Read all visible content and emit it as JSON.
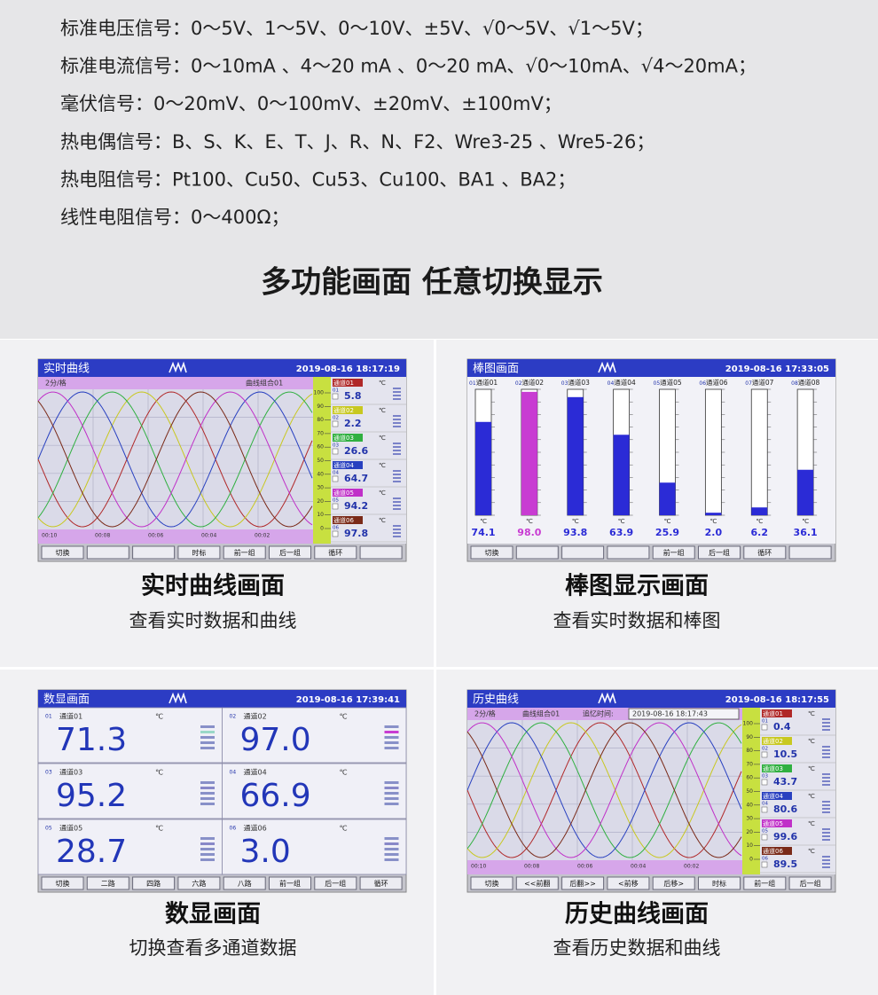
{
  "signals": [
    {
      "label": "标准电压信号：",
      "text": "0～5V、1～5V、0～10V、±5V、√0～5V、√1～5V；"
    },
    {
      "label": "标准电流信号：",
      "text": "0～10mA 、4～20 mA 、0～20 mA、√0～10mA、√4～20mA；"
    },
    {
      "label": "毫伏信号：",
      "text": "0～20mV、0～100mV、±20mV、±100mV；"
    },
    {
      "label": "热电偶信号：",
      "text": "B、S、K、E、T、J、R、N、F2、Wre3-25 、Wre5-26；"
    },
    {
      "label": "热电阻信号：",
      "text": "Pt100、Cu50、Cu53、Cu100、BA1 、BA2；"
    },
    {
      "label": "线性电阻信号：",
      "text": "0～400Ω；"
    }
  ],
  "heading": "多功能画面  任意切换显示",
  "panels": [
    {
      "title": "实时曲线画面",
      "subtitle": "查看实时数据和曲线",
      "screen": {
        "kind": "curve",
        "title": "实时曲线",
        "datetime": "2019-08-16 18:17:19",
        "scale_label": "2分/格",
        "group": "曲线组合01",
        "times": [
          "00:10",
          "00:08",
          "00:06",
          "00:04",
          "00:02"
        ],
        "scale": [
          "100",
          "90",
          "80",
          "70",
          "60",
          "50",
          "40",
          "30",
          "20",
          "10",
          "0"
        ],
        "channels": [
          {
            "id": "01",
            "name": "通道01",
            "unit": "℃",
            "value": "5.8",
            "color": "#b02828"
          },
          {
            "id": "02",
            "name": "通道02",
            "unit": "℃",
            "value": "2.2",
            "color": "#c8c820"
          },
          {
            "id": "03",
            "name": "通道03",
            "unit": "℃",
            "value": "26.6",
            "color": "#30b040"
          },
          {
            "id": "04",
            "name": "通道04",
            "unit": "℃",
            "value": "64.7",
            "color": "#2840c0"
          },
          {
            "id": "05",
            "name": "通道05",
            "unit": "℃",
            "value": "94.2",
            "color": "#c030c8"
          },
          {
            "id": "06",
            "name": "通道06",
            "unit": "℃",
            "value": "97.8",
            "color": "#7a2a18"
          }
        ],
        "buttons": [
          "切换",
          null,
          null,
          "时标",
          "前一组",
          "后一组",
          "循环",
          null
        ]
      }
    },
    {
      "title": "棒图显示画面",
      "subtitle": "查看实时数据和棒图",
      "screen": {
        "kind": "bar",
        "title": "棒图画面",
        "datetime": "2019-08-16 17:33:05",
        "ylim": [
          0,
          100
        ],
        "channels": [
          {
            "id": "01",
            "name": "通道01",
            "unit": "℃",
            "value": 74.1,
            "value_label": "74.1",
            "color": "#2b2bd6"
          },
          {
            "id": "02",
            "name": "通道02",
            "unit": "℃",
            "value": 98,
            "value_label": "98.0",
            "color": "#c83cd2"
          },
          {
            "id": "03",
            "name": "通道03",
            "unit": "℃",
            "value": 93.8,
            "value_label": "93.8",
            "color": "#2b2bd6"
          },
          {
            "id": "04",
            "name": "通道04",
            "unit": "℃",
            "value": 63.9,
            "value_label": "63.9",
            "color": "#2b2bd6"
          },
          {
            "id": "05",
            "name": "通道05",
            "unit": "℃",
            "value": 25.9,
            "value_label": "25.9",
            "color": "#2b2bd6"
          },
          {
            "id": "06",
            "name": "通道06",
            "unit": "℃",
            "value": 2,
            "value_label": "2.0",
            "color": "#2b2bd6"
          },
          {
            "id": "07",
            "name": "通道07",
            "unit": "℃",
            "value": 6.2,
            "value_label": "6.2",
            "color": "#2b2bd6"
          },
          {
            "id": "08",
            "name": "通道08",
            "unit": "℃",
            "value": 36.1,
            "value_label": "36.1",
            "color": "#2b2bd6"
          }
        ],
        "buttons": [
          "切换",
          null,
          null,
          null,
          "前一组",
          "后一组",
          "循环",
          null
        ]
      }
    },
    {
      "title": "数显画面",
      "subtitle": "切换查看多通道数据",
      "screen": {
        "kind": "numeric",
        "title": "数显画面",
        "datetime": "2019-08-16 17:39:41",
        "channels": [
          {
            "id": "01",
            "name": "通道01",
            "unit": "℃",
            "value": "71.3",
            "color": "#9ad8c8"
          },
          {
            "id": "02",
            "name": "通道02",
            "unit": "℃",
            "value": "97.0",
            "color": "#c83cd2"
          },
          {
            "id": "03",
            "name": "通道03",
            "unit": "℃",
            "value": "95.2",
            "color": "#8888c8"
          },
          {
            "id": "04",
            "name": "通道04",
            "unit": "℃",
            "value": "66.9",
            "color": "#8888c8"
          },
          {
            "id": "05",
            "name": "通道05",
            "unit": "℃",
            "value": "28.7",
            "color": "#8888c8"
          },
          {
            "id": "06",
            "name": "通道06",
            "unit": "℃",
            "value": "3.0",
            "color": "#8888c8"
          }
        ],
        "buttons": [
          "切换",
          "二路",
          "四路",
          "六路",
          "八路",
          "前一组",
          "后一组",
          "循环"
        ]
      }
    },
    {
      "title": "历史曲线画面",
      "subtitle": "查看历史数据和曲线",
      "screen": {
        "kind": "curve",
        "title": "历史曲线",
        "datetime": "2019-08-16 18:17:55",
        "scale_label": "2分/格",
        "group": "曲线组合01",
        "recall_label": "追忆时间:",
        "recall_time": "2019-08-16 18:17:43",
        "times": [
          "00:10",
          "00:08",
          "00:06",
          "00:04",
          "00:02"
        ],
        "scale": [
          "100",
          "90",
          "80",
          "70",
          "60",
          "50",
          "40",
          "30",
          "20",
          "10",
          "0"
        ],
        "channels": [
          {
            "id": "01",
            "name": "通道01",
            "unit": "℃",
            "value": "0.4",
            "color": "#b02828"
          },
          {
            "id": "02",
            "name": "通道02",
            "unit": "℃",
            "value": "10.5",
            "color": "#c8c820"
          },
          {
            "id": "03",
            "name": "通道03",
            "unit": "℃",
            "value": "43.7",
            "color": "#30b040"
          },
          {
            "id": "04",
            "name": "通道04",
            "unit": "℃",
            "value": "80.6",
            "color": "#2840c0"
          },
          {
            "id": "05",
            "name": "通道05",
            "unit": "℃",
            "value": "99.6",
            "color": "#c030c8"
          },
          {
            "id": "06",
            "name": "通道06",
            "unit": "℃",
            "value": "89.5",
            "color": "#7a2a18"
          }
        ],
        "buttons": [
          "切换",
          "<<前翻",
          "后翻>>",
          "<前移",
          "后移>",
          "时标",
          "前一组",
          "后一组"
        ]
      }
    }
  ]
}
